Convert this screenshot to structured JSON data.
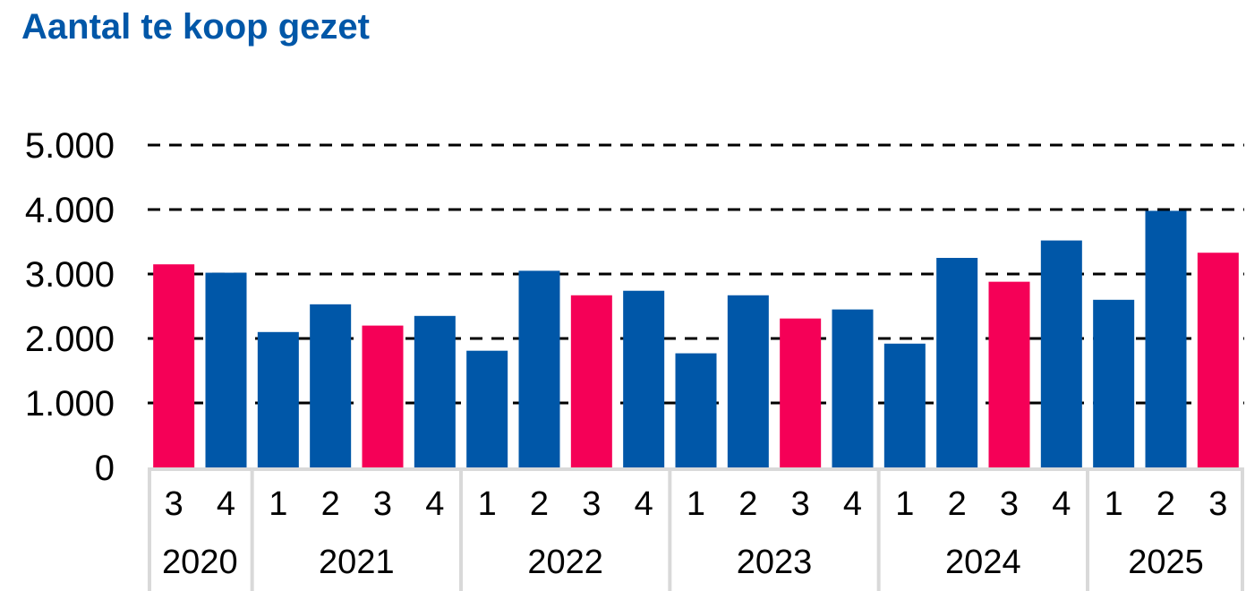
{
  "colors": {
    "title": "#0057A8",
    "series_default": "#0057A8",
    "series_highlight": "#F50057",
    "grid": "#000000",
    "axis": "#D9D9D9"
  },
  "chart_data": {
    "type": "bar",
    "title": "Aantal te koop gezet",
    "xlabel": "",
    "ylabel": "",
    "ylim": [
      0,
      5000
    ],
    "yticks": [
      0,
      1000,
      2000,
      3000,
      4000,
      5000
    ],
    "ytick_labels": [
      "0",
      "1.000",
      "2.000",
      "3.000",
      "4.000",
      "5.000"
    ],
    "grid": "dashed horizontal",
    "legend": "none",
    "categories": [
      "3",
      "4",
      "1",
      "2",
      "3",
      "4",
      "1",
      "2",
      "3",
      "4",
      "1",
      "2",
      "3",
      "4",
      "1",
      "2",
      "3",
      "4",
      "1",
      "2",
      "3"
    ],
    "groups": [
      {
        "label": "2020",
        "count": 2
      },
      {
        "label": "2021",
        "count": 4
      },
      {
        "label": "2022",
        "count": 4
      },
      {
        "label": "2023",
        "count": 4
      },
      {
        "label": "2024",
        "count": 4
      },
      {
        "label": "2025",
        "count": 3
      }
    ],
    "values": [
      3150,
      3020,
      2100,
      2530,
      2200,
      2350,
      1810,
      3050,
      2670,
      2740,
      1770,
      2670,
      2310,
      2450,
      1920,
      3250,
      2880,
      3520,
      2600,
      3980,
      3330
    ],
    "highlight": [
      true,
      false,
      false,
      false,
      true,
      false,
      false,
      false,
      true,
      false,
      false,
      false,
      true,
      false,
      false,
      false,
      true,
      false,
      false,
      false,
      true
    ]
  }
}
